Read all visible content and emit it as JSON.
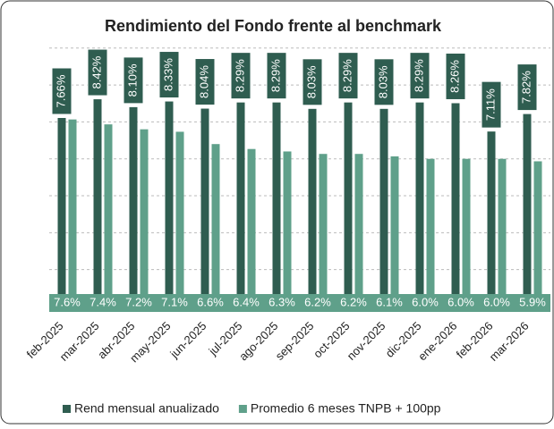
{
  "chart_data": {
    "type": "bar",
    "title": "Rendimiento del Fondo frente al benchmark",
    "categories": [
      "feb-2025",
      "mar-2025",
      "abr-2025",
      "may-2025",
      "jun-2025",
      "jul-2025",
      "ago-2025",
      "sep-2025",
      "oct-2025",
      "nov-2025",
      "dic-2025",
      "ene-2026",
      "feb-2026",
      "mar-2026"
    ],
    "series": [
      {
        "name": "Rend mensual anualizado",
        "color": "#2f5d50",
        "values": [
          7.66,
          8.42,
          8.1,
          8.33,
          8.04,
          8.29,
          8.29,
          8.03,
          8.29,
          8.03,
          8.29,
          8.26,
          7.11,
          7.82
        ],
        "value_labels": [
          "7.66%",
          "8.42%",
          "8.10%",
          "8.33%",
          "8.04%",
          "8.29%",
          "8.29%",
          "8.03%",
          "8.29%",
          "8.03%",
          "8.29%",
          "8.26%",
          "7.11%",
          "7.82%"
        ]
      },
      {
        "name": "Promedio 6 meses TNPB + 100pp",
        "color": "#5fa08a",
        "values": [
          7.6,
          7.4,
          7.2,
          7.1,
          6.6,
          6.4,
          6.3,
          6.2,
          6.2,
          6.1,
          6.0,
          6.0,
          6.0,
          5.9
        ],
        "value_labels": [
          "7.6%",
          "7.4%",
          "7.2%",
          "7.1%",
          "6.6%",
          "6.4%",
          "6.3%",
          "6.2%",
          "6.2%",
          "6.1%",
          "6.0%",
          "6.0%",
          "6.0%",
          "5.9%"
        ]
      }
    ],
    "ylim": [
      0,
      11
    ],
    "yticks": [
      0,
      1.5,
      3,
      4.5,
      6,
      7.5,
      9,
      10.5
    ],
    "grid": true,
    "legend": "bottom"
  }
}
